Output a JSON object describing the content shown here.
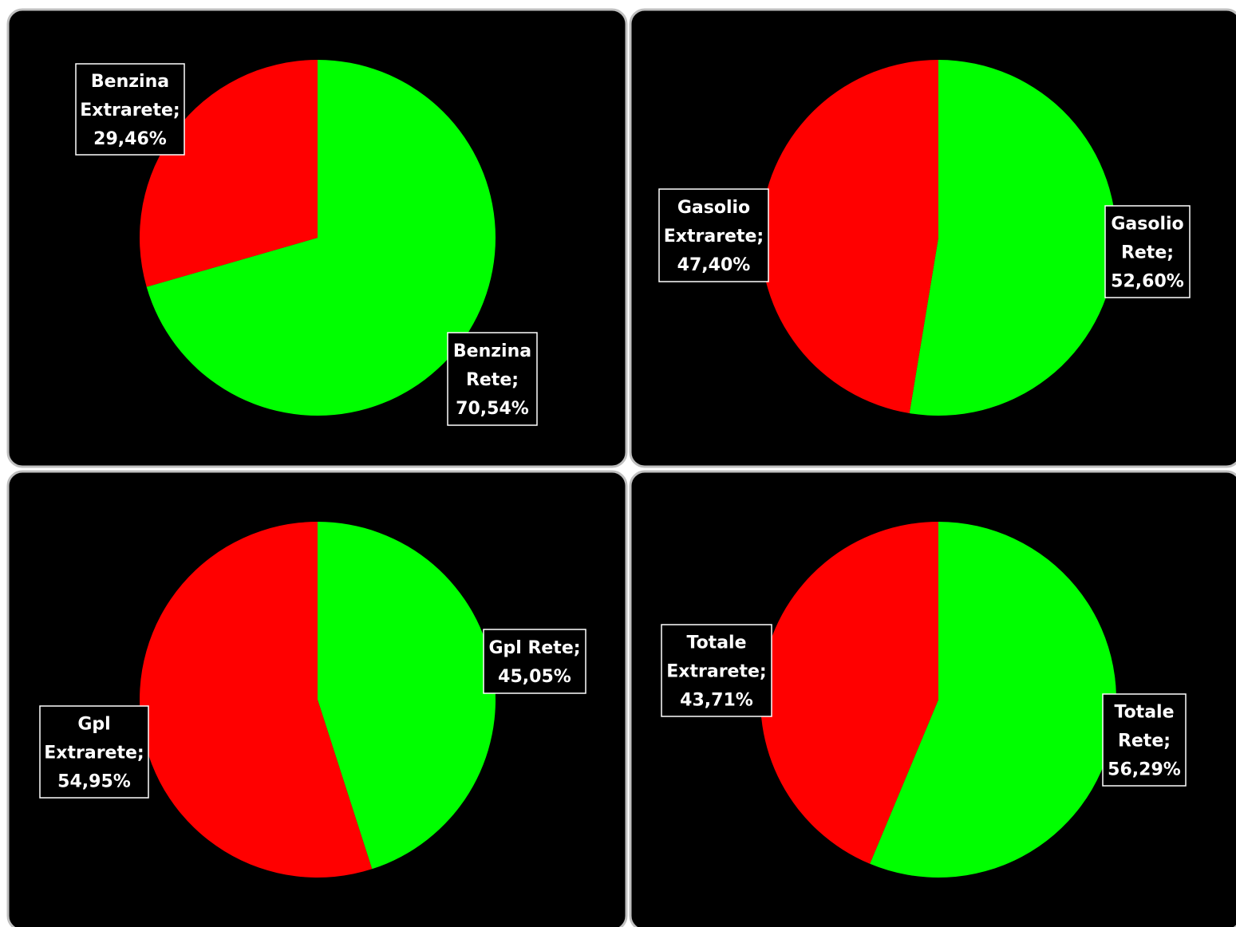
{
  "chart_data": [
    {
      "type": "pie",
      "slices": [
        {
          "category": "Benzina Rete",
          "value": 70.54,
          "label": [
            "Benzina",
            "Rete;",
            "70,54%"
          ],
          "color": "#00ff00"
        },
        {
          "category": "Benzina Extrarete",
          "value": 29.46,
          "label": [
            "Benzina",
            "Extrarete;",
            "29,46%"
          ],
          "color": "#ff0000"
        }
      ]
    },
    {
      "type": "pie",
      "slices": [
        {
          "category": "Gasolio Rete",
          "value": 52.6,
          "label": [
            "Gasolio",
            "Rete;",
            "52,60%"
          ],
          "color": "#00ff00"
        },
        {
          "category": "Gasolio Extrarete",
          "value": 47.4,
          "label": [
            "Gasolio",
            "Extrarete;",
            "47,40%"
          ],
          "color": "#ff0000"
        }
      ]
    },
    {
      "type": "pie",
      "slices": [
        {
          "category": "Gpl Rete",
          "value": 45.05,
          "label": [
            "Gpl Rete;",
            "45,05%"
          ],
          "color": "#00ff00"
        },
        {
          "category": "Gpl Extrarete",
          "value": 54.95,
          "label": [
            "Gpl",
            "Extrarete;",
            "54,95%"
          ],
          "color": "#ff0000"
        }
      ]
    },
    {
      "type": "pie",
      "slices": [
        {
          "category": "Totale Rete",
          "value": 56.29,
          "label": [
            "Totale",
            "Rete;",
            "56,29%"
          ],
          "color": "#00ff00"
        },
        {
          "category": "Totale Extrarete",
          "value": 43.71,
          "label": [
            "Totale",
            "Extrarete;",
            "43,71%"
          ],
          "color": "#ff0000"
        }
      ]
    }
  ]
}
